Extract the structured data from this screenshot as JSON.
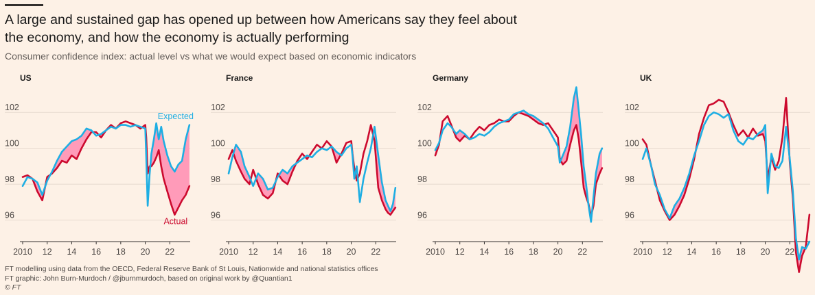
{
  "title": "A large and sustained gap has opened up between how Americans say they feel about the economy, and how the economy is actually performing",
  "subtitle": "Consumer confidence index: actual level vs what we would expect based on economic indicators",
  "footer": {
    "source": "FT modelling using data from the OECD, Federal Reserve Bank of St Louis, Nationwide and national statistics offices",
    "graphic": "FT graphic: John Burn-Murdoch / @jburnmurdoch, based on original work by @Quantian1",
    "copyright": "© FT"
  },
  "colors": {
    "actual": "#cc0a2e",
    "expected": "#1eaee3",
    "gap_fill": "#ff9bb9",
    "grid": "#e6d9ce",
    "axis": "#33302e",
    "background": "#fdf1e6"
  },
  "chart_data": [
    {
      "type": "line",
      "title": "US",
      "xlim": [
        2010,
        2024
      ],
      "ylim": [
        94.8,
        103
      ],
      "xticks": [
        2010,
        2012,
        2014,
        2016,
        2018,
        2020,
        2022
      ],
      "xticklabels": [
        "2010",
        "12",
        "14",
        "16",
        "18",
        "20",
        "22"
      ],
      "yticks": [
        96,
        98,
        100,
        102
      ],
      "yticklabels": [
        "96",
        "98",
        "100",
        "102"
      ],
      "series": [
        {
          "name": "Expected",
          "x": [
            2010,
            2010.4,
            2010.8,
            2011.2,
            2011.6,
            2012,
            2012.4,
            2012.8,
            2013.2,
            2013.6,
            2014,
            2014.4,
            2014.8,
            2015.2,
            2015.6,
            2016,
            2016.4,
            2016.8,
            2017.2,
            2017.6,
            2018,
            2018.4,
            2018.8,
            2019.2,
            2019.6,
            2020,
            2020.08,
            2020.2,
            2020.35,
            2020.5,
            2020.7,
            2020.9,
            2021.1,
            2021.3,
            2021.5,
            2021.8,
            2022.1,
            2022.4,
            2022.7,
            2023,
            2023.3,
            2023.6
          ],
          "y": [
            97.9,
            98.4,
            98.3,
            98.1,
            97.4,
            98.2,
            98.7,
            99.3,
            99.8,
            100.1,
            100.4,
            100.5,
            100.7,
            101.1,
            101.0,
            100.7,
            100.8,
            101.0,
            101.2,
            101.1,
            101.3,
            101.3,
            101.2,
            101.3,
            101.2,
            101.1,
            99.5,
            96.8,
            98.5,
            99.7,
            100.5,
            101.4,
            100.5,
            101.2,
            100.4,
            99.6,
            99.0,
            98.7,
            99.1,
            99.3,
            100.5,
            101.3
          ]
        },
        {
          "name": "Actual",
          "x": [
            2010,
            2010.4,
            2010.8,
            2011.2,
            2011.6,
            2012,
            2012.4,
            2012.8,
            2013.2,
            2013.6,
            2014,
            2014.4,
            2014.8,
            2015.2,
            2015.6,
            2016,
            2016.4,
            2016.8,
            2017.2,
            2017.6,
            2018,
            2018.4,
            2018.8,
            2019.2,
            2019.6,
            2020,
            2020.08,
            2020.2,
            2020.35,
            2020.5,
            2020.7,
            2020.9,
            2021.1,
            2021.3,
            2021.5,
            2021.8,
            2022.1,
            2022.4,
            2022.7,
            2023,
            2023.3,
            2023.6
          ],
          "y": [
            98.4,
            98.5,
            98.3,
            97.6,
            97.1,
            98.4,
            98.6,
            98.9,
            99.3,
            99.2,
            99.6,
            99.4,
            100.0,
            100.5,
            100.9,
            100.9,
            100.6,
            101.0,
            101.3,
            101.1,
            101.4,
            101.5,
            101.4,
            101.3,
            101.1,
            101.3,
            100.6,
            98.6,
            99.0,
            99.0,
            99.2,
            99.5,
            99.9,
            99.0,
            98.3,
            97.6,
            96.9,
            96.3,
            96.7,
            97.1,
            97.4,
            97.9
          ]
        }
      ],
      "annotations": [
        {
          "text": "Expected",
          "series": "Expected"
        },
        {
          "text": "Actual",
          "series": "Actual"
        }
      ]
    },
    {
      "type": "line",
      "title": "France",
      "xlim": [
        2010,
        2024
      ],
      "ylim": [
        94.8,
        103
      ],
      "xticks": [
        2010,
        2012,
        2014,
        2016,
        2018,
        2020,
        2022
      ],
      "xticklabels": [
        "2010",
        "12",
        "14",
        "16",
        "18",
        "20",
        "22"
      ],
      "yticks": [
        96,
        98,
        100,
        102
      ],
      "yticklabels": [
        "96",
        "98",
        "100",
        "102"
      ],
      "series": [
        {
          "name": "Expected",
          "x": [
            2010,
            2010.3,
            2010.6,
            2011,
            2011.3,
            2011.7,
            2012,
            2012.4,
            2012.8,
            2013.2,
            2013.6,
            2014,
            2014.4,
            2014.8,
            2015.2,
            2015.6,
            2016,
            2016.4,
            2016.8,
            2017.2,
            2017.6,
            2018,
            2018.4,
            2018.8,
            2019.2,
            2019.6,
            2020,
            2020.1,
            2020.25,
            2020.45,
            2020.7,
            2021,
            2021.3,
            2021.6,
            2021.9,
            2022.2,
            2022.5,
            2022.8,
            2023,
            2023.2,
            2023.4,
            2023.6
          ],
          "y": [
            98.6,
            99.5,
            100.2,
            99.8,
            99.0,
            98.4,
            97.9,
            98.6,
            98.3,
            97.7,
            97.8,
            98.4,
            98.8,
            98.6,
            99.0,
            99.2,
            99.4,
            99.6,
            99.5,
            99.8,
            100.0,
            99.9,
            100.1,
            99.8,
            99.6,
            100.0,
            100.2,
            99.6,
            98.3,
            99.0,
            97.0,
            98.3,
            99.2,
            100.0,
            101.2,
            99.6,
            98.1,
            97.1,
            96.8,
            96.5,
            96.9,
            97.8
          ]
        },
        {
          "name": "Actual",
          "x": [
            2010,
            2010.3,
            2010.6,
            2011,
            2011.3,
            2011.7,
            2012,
            2012.4,
            2012.8,
            2013.2,
            2013.6,
            2014,
            2014.4,
            2014.8,
            2015.2,
            2015.6,
            2016,
            2016.4,
            2016.8,
            2017.2,
            2017.6,
            2018,
            2018.4,
            2018.8,
            2019.2,
            2019.6,
            2020,
            2020.1,
            2020.25,
            2020.45,
            2020.7,
            2021,
            2021.3,
            2021.6,
            2021.9,
            2022.2,
            2022.5,
            2022.8,
            2023,
            2023.2,
            2023.4,
            2023.6
          ],
          "y": [
            99.4,
            99.9,
            99.3,
            98.7,
            98.3,
            98.0,
            98.8,
            98.0,
            97.4,
            97.2,
            97.5,
            98.6,
            98.2,
            98.0,
            98.7,
            99.3,
            99.7,
            99.4,
            99.8,
            100.2,
            100.0,
            100.4,
            100.1,
            99.2,
            99.7,
            100.3,
            100.4,
            99.7,
            98.9,
            98.2,
            98.6,
            99.7,
            100.4,
            101.3,
            100.4,
            97.8,
            97.1,
            96.6,
            96.4,
            96.3,
            96.5,
            96.7
          ]
        }
      ]
    },
    {
      "type": "line",
      "title": "Germany",
      "xlim": [
        2010,
        2024
      ],
      "ylim": [
        94.8,
        103
      ],
      "xticks": [
        2010,
        2012,
        2014,
        2016,
        2018,
        2020,
        2022
      ],
      "xticklabels": [
        "2010",
        "12",
        "14",
        "16",
        "18",
        "20",
        "22"
      ],
      "yticks": [
        96,
        98,
        100,
        102
      ],
      "yticklabels": [
        "96",
        "98",
        "100",
        "102"
      ],
      "series": [
        {
          "name": "Expected",
          "x": [
            2010,
            2010.3,
            2010.6,
            2011,
            2011.3,
            2011.7,
            2012,
            2012.4,
            2012.8,
            2013.2,
            2013.6,
            2014,
            2014.4,
            2014.8,
            2015.2,
            2015.6,
            2016,
            2016.4,
            2016.8,
            2017.2,
            2017.6,
            2018,
            2018.4,
            2018.8,
            2019.2,
            2019.6,
            2020,
            2020.15,
            2020.4,
            2020.7,
            2021,
            2021.3,
            2021.5,
            2021.7,
            2021.9,
            2022.1,
            2022.3,
            2022.5,
            2022.7,
            2022.9,
            2023.1,
            2023.4,
            2023.6
          ],
          "y": [
            99.9,
            100.3,
            101.0,
            101.4,
            101.2,
            100.8,
            101.0,
            100.8,
            100.5,
            100.6,
            100.8,
            100.7,
            100.9,
            101.2,
            101.4,
            101.5,
            101.6,
            101.9,
            102.0,
            102.1,
            101.9,
            101.8,
            101.6,
            101.4,
            101.1,
            100.6,
            100.1,
            99.2,
            99.6,
            100.1,
            101.2,
            102.8,
            103.4,
            102.1,
            100.7,
            99.0,
            98.0,
            96.8,
            95.9,
            97.3,
            98.6,
            99.7,
            100.0
          ]
        },
        {
          "name": "Actual",
          "x": [
            2010,
            2010.3,
            2010.6,
            2011,
            2011.3,
            2011.7,
            2012,
            2012.4,
            2012.8,
            2013.2,
            2013.6,
            2014,
            2014.4,
            2014.8,
            2015.2,
            2015.6,
            2016,
            2016.4,
            2016.8,
            2017.2,
            2017.6,
            2018,
            2018.4,
            2018.8,
            2019.2,
            2019.6,
            2020,
            2020.15,
            2020.4,
            2020.7,
            2021,
            2021.3,
            2021.5,
            2021.7,
            2021.9,
            2022.1,
            2022.3,
            2022.5,
            2022.7,
            2022.9,
            2023.1,
            2023.4,
            2023.6
          ],
          "y": [
            99.6,
            100.2,
            101.5,
            101.8,
            101.3,
            100.6,
            100.4,
            100.7,
            100.5,
            100.9,
            101.2,
            101.0,
            101.3,
            101.4,
            101.6,
            101.5,
            101.5,
            101.8,
            102.0,
            101.9,
            101.8,
            101.6,
            101.4,
            101.3,
            101.4,
            101.0,
            100.6,
            99.4,
            99.1,
            99.3,
            100.2,
            101.0,
            101.3,
            100.5,
            99.2,
            97.8,
            97.3,
            96.9,
            96.2,
            96.8,
            98.0,
            98.6,
            98.9
          ]
        }
      ]
    },
    {
      "type": "line",
      "title": "UK",
      "xlim": [
        2010,
        2024
      ],
      "ylim": [
        94.8,
        103
      ],
      "xticks": [
        2010,
        2012,
        2014,
        2016,
        2018,
        2020,
        2022
      ],
      "xticklabels": [
        "2010",
        "12",
        "14",
        "16",
        "18",
        "20",
        "22"
      ],
      "yticks": [
        96,
        98,
        100,
        102
      ],
      "yticklabels": [
        "96",
        "98",
        "100",
        "102"
      ],
      "series": [
        {
          "name": "Expected",
          "x": [
            2010,
            2010.3,
            2010.7,
            2011,
            2011.4,
            2011.8,
            2012.2,
            2012.6,
            2013,
            2013.4,
            2013.8,
            2014.2,
            2014.6,
            2015,
            2015.4,
            2015.8,
            2016.2,
            2016.6,
            2017,
            2017.4,
            2017.8,
            2018.2,
            2018.6,
            2019,
            2019.4,
            2019.8,
            2020,
            2020.2,
            2020.5,
            2020.8,
            2021.1,
            2021.4,
            2021.7,
            2022,
            2022.25,
            2022.5,
            2022.75,
            2023,
            2023.3,
            2023.6
          ],
          "y": [
            99.4,
            100.0,
            99.0,
            98.0,
            97.4,
            96.6,
            96.1,
            96.8,
            97.2,
            97.8,
            98.6,
            99.6,
            100.4,
            101.3,
            101.8,
            102.0,
            101.9,
            101.7,
            101.9,
            101.0,
            100.4,
            100.2,
            100.6,
            100.5,
            100.8,
            101.0,
            101.3,
            97.5,
            99.7,
            99.0,
            98.9,
            99.3,
            101.2,
            99.4,
            97.6,
            95.0,
            93.8,
            94.5,
            94.4,
            94.8
          ]
        },
        {
          "name": "Actual",
          "x": [
            2010,
            2010.3,
            2010.7,
            2011,
            2011.4,
            2011.8,
            2012.2,
            2012.6,
            2013,
            2013.4,
            2013.8,
            2014.2,
            2014.6,
            2015,
            2015.4,
            2015.8,
            2016.2,
            2016.6,
            2017,
            2017.4,
            2017.8,
            2018.2,
            2018.6,
            2019,
            2019.4,
            2019.8,
            2020,
            2020.2,
            2020.5,
            2020.8,
            2021.1,
            2021.4,
            2021.7,
            2022,
            2022.25,
            2022.5,
            2022.75,
            2023,
            2023.3,
            2023.6
          ],
          "y": [
            100.5,
            100.2,
            99.0,
            98.2,
            97.1,
            96.5,
            96.0,
            96.3,
            96.8,
            97.4,
            98.3,
            99.4,
            100.8,
            101.7,
            102.4,
            102.5,
            102.7,
            102.6,
            102.0,
            101.3,
            100.7,
            101.0,
            100.6,
            101.1,
            100.7,
            100.8,
            100.4,
            98.3,
            99.5,
            98.8,
            99.3,
            100.6,
            102.8,
            99.2,
            97.2,
            94.2,
            93.1,
            94.0,
            94.5,
            96.3
          ]
        }
      ]
    }
  ]
}
